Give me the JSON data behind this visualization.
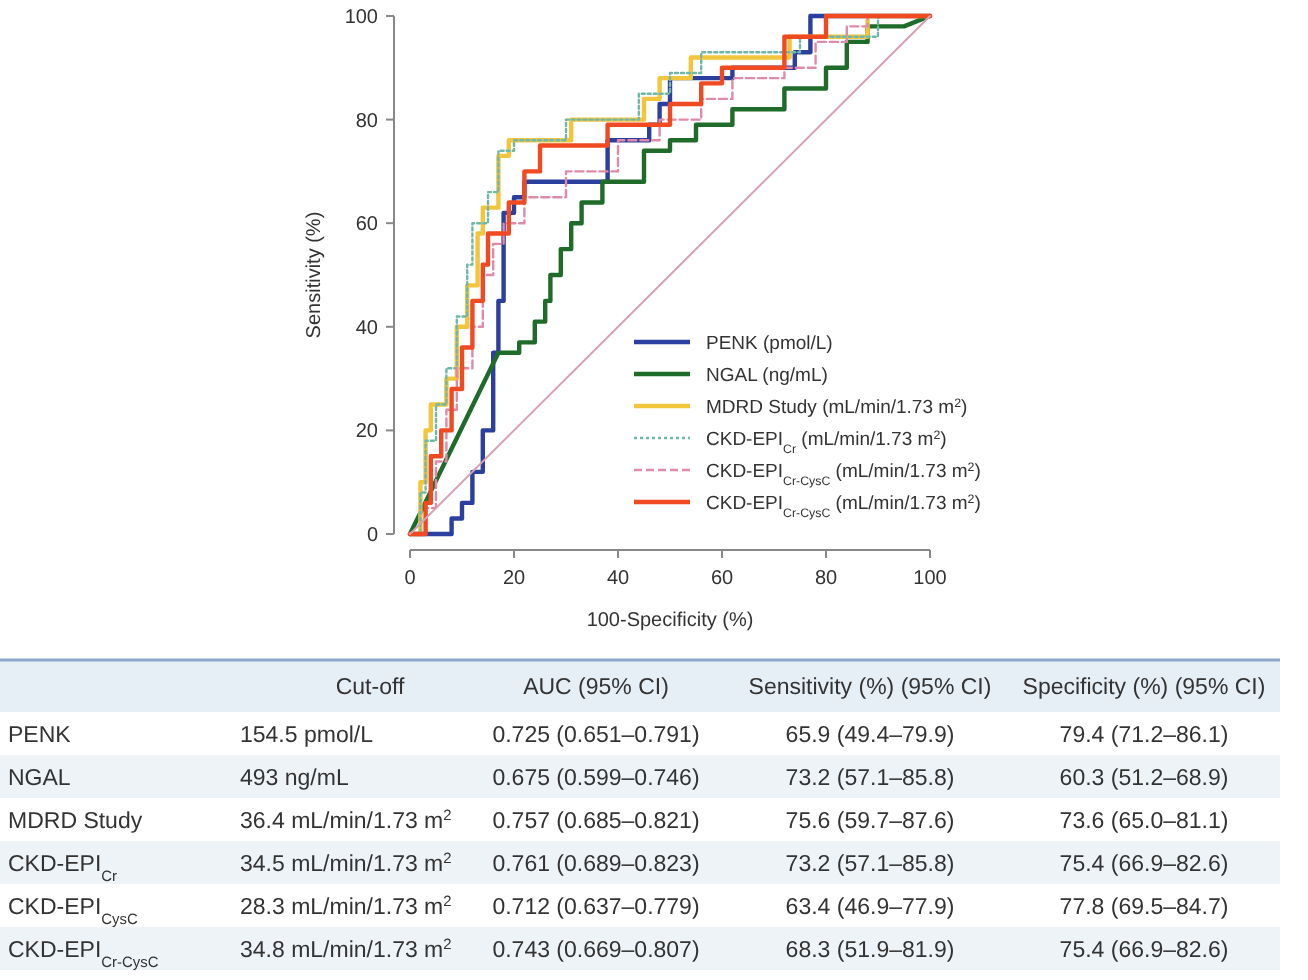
{
  "chart_data": {
    "type": "line",
    "xlabel": "100-Specificity (%)",
    "ylabel": "Sensitivity (%)",
    "xlim": [
      0,
      100
    ],
    "ylim": [
      0,
      100
    ],
    "xticks": [
      0,
      20,
      40,
      60,
      80,
      100
    ],
    "yticks": [
      0,
      20,
      40,
      60,
      80,
      100
    ],
    "grid": false,
    "legend": "bottom right",
    "marker": "none",
    "series": [
      {
        "name": "PENK (pmol/L)",
        "color": "#2b3f9e",
        "line_style": "solid",
        "x": [
          0,
          8,
          8,
          10,
          10,
          12,
          12,
          14,
          14,
          16,
          16,
          17,
          17,
          18,
          18,
          20,
          20,
          22,
          22,
          38,
          38,
          46,
          46,
          48,
          48,
          50,
          50,
          62,
          62,
          74,
          74,
          77,
          77,
          100
        ],
        "values": [
          0,
          0,
          3,
          3,
          6,
          6,
          12,
          12,
          20,
          20,
          35,
          35,
          45,
          45,
          62,
          62,
          65,
          65,
          68,
          68,
          76,
          76,
          79,
          79,
          83,
          83,
          88,
          88,
          90,
          90,
          93,
          93,
          100,
          100
        ]
      },
      {
        "name": "NGAL (ng/mL)",
        "color": "#1e6b2a",
        "line_style": "solid",
        "x": [
          0,
          17,
          21,
          21,
          24,
          24,
          26,
          26,
          27,
          27,
          29,
          29,
          31,
          31,
          33,
          33,
          37,
          37,
          45,
          45,
          50,
          50,
          55,
          55,
          62,
          62,
          72,
          72,
          80,
          80,
          84,
          84,
          88,
          88,
          95,
          100
        ],
        "values": [
          0,
          35,
          35,
          37,
          37,
          41,
          41,
          45,
          45,
          50,
          50,
          55,
          55,
          60,
          60,
          64,
          64,
          68,
          68,
          74,
          74,
          76,
          76,
          79,
          79,
          82,
          82,
          86,
          86,
          90,
          90,
          95,
          95,
          98,
          98,
          100
        ]
      },
      {
        "name": "MDRD Study (mL/min/1.73 m$^{2}$)",
        "color": "#f2c53d",
        "line_style": "solid",
        "x": [
          0,
          2,
          2,
          3,
          3,
          4,
          4,
          7,
          7,
          9,
          9,
          11,
          11,
          13,
          13,
          14,
          14,
          17,
          17,
          19,
          19,
          31,
          31,
          45,
          45,
          48,
          48,
          54,
          54,
          73,
          73,
          88,
          88,
          100
        ],
        "values": [
          0,
          0,
          10,
          10,
          20,
          20,
          25,
          25,
          30,
          30,
          40,
          40,
          48,
          48,
          58,
          58,
          63,
          63,
          73,
          73,
          76,
          76,
          80,
          80,
          84,
          84,
          88,
          88,
          92,
          92,
          96,
          96,
          100,
          100
        ]
      },
      {
        "name": "CKD-EPI$_{Cr}$ (mL/min/1.73 m$^{2}$)",
        "color": "#6fb8a8",
        "line_style": "dotted",
        "x": [
          0,
          2,
          2,
          3,
          3,
          5,
          5,
          7,
          7,
          9,
          9,
          11,
          11,
          12,
          12,
          15,
          15,
          17,
          17,
          20,
          20,
          30,
          30,
          44,
          44,
          50,
          50,
          56,
          56,
          75,
          75,
          90,
          90,
          100
        ],
        "values": [
          0,
          0,
          8,
          8,
          18,
          18,
          25,
          25,
          32,
          32,
          42,
          42,
          52,
          52,
          60,
          60,
          66,
          66,
          74,
          74,
          76,
          76,
          80,
          80,
          85,
          85,
          89,
          89,
          93,
          93,
          96,
          96,
          100,
          100
        ]
      },
      {
        "name": "CKD-EPI$_{Cr-CysC}$ (mL/min/1.73 m$^{2}$)",
        "color": "#e08aa8",
        "line_style": "dashed",
        "x": [
          0,
          3,
          3,
          5,
          5,
          7,
          7,
          9,
          9,
          12,
          12,
          14,
          14,
          16,
          16,
          18,
          18,
          22,
          22,
          30,
          30,
          40,
          40,
          48,
          48,
          56,
          56,
          62,
          62,
          72,
          72,
          78,
          78,
          84,
          84,
          88,
          88,
          100
        ],
        "values": [
          0,
          0,
          5,
          5,
          14,
          14,
          24,
          24,
          32,
          32,
          40,
          40,
          50,
          50,
          56,
          56,
          60,
          60,
          65,
          65,
          70,
          70,
          76,
          76,
          80,
          80,
          84,
          84,
          88,
          88,
          90,
          90,
          95,
          95,
          98,
          98,
          100,
          100
        ]
      },
      {
        "name": "CKD-EPI$_{Cr-CysC}$ (mL/min/1.73 m$^{2}$)",
        "color": "#f04a23",
        "line_style": "solid",
        "x": [
          0,
          3,
          3,
          4,
          4,
          6,
          6,
          8,
          8,
          10,
          10,
          12,
          12,
          14,
          14,
          15,
          15,
          19,
          19,
          22,
          22,
          25,
          25,
          38,
          38,
          50,
          50,
          56,
          56,
          60,
          60,
          72,
          72,
          80,
          80,
          100
        ],
        "values": [
          0,
          0,
          6,
          6,
          15,
          15,
          20,
          20,
          28,
          28,
          36,
          36,
          45,
          45,
          52,
          52,
          58,
          58,
          64,
          64,
          70,
          70,
          75,
          75,
          79,
          79,
          83,
          83,
          87,
          87,
          90,
          90,
          96,
          96,
          100,
          100
        ]
      },
      {
        "color": "#d8a0b0",
        "line_style": "solid",
        "x": [
          0,
          100
        ],
        "values": [
          0,
          100
        ]
      }
    ],
    "annotations": [
      "Cut-off",
      "AUC (95% CI)",
      "Sensitivity (%) (95% CI)",
      "Specificity (%) (95% CI)",
      "PENK",
      "154.5 pmol/L",
      "0.725 (0.651–0.791)",
      "65.9 (49.4–79.9)",
      "79.4 (71.2–86.1)",
      "NGAL",
      "493 ng/mL",
      "0.675 (0.599–0.746)",
      "73.2 (57.1–85.8)",
      "60.3 (51.2–68.9)",
      "MDRD Study",
      "36.4 mL/min/1.73 m$^{2}$",
      "0.757 (0.685–0.821)",
      "75.6 (59.7–87.6)",
      "73.6 (65.0–81.1)",
      "CKD-EPI$_{Cr}$",
      "34.5 mL/min/1.73 m$^{2}$",
      "0.761 (0.689–0.823)",
      "73.2 (57.1–85.8)",
      "75.4 (66.9–82.6)",
      "CKD-EPI$_{CysC}$",
      "28.3 mL/min/1.73 m$^{2}$",
      "0.712 (0.637–0.779)",
      "63.4 (46.9–77.9)",
      "77.8 (69.5–84.7)",
      "CKD-EPI$_{Cr-CysC}$",
      "34.8 mL/min/1.73 m$^{2}$",
      "0.743 (0.669–0.807)",
      "68.3 (51.9–81.9)",
      "75.4 (66.9–82.6)"
    ]
  }
}
